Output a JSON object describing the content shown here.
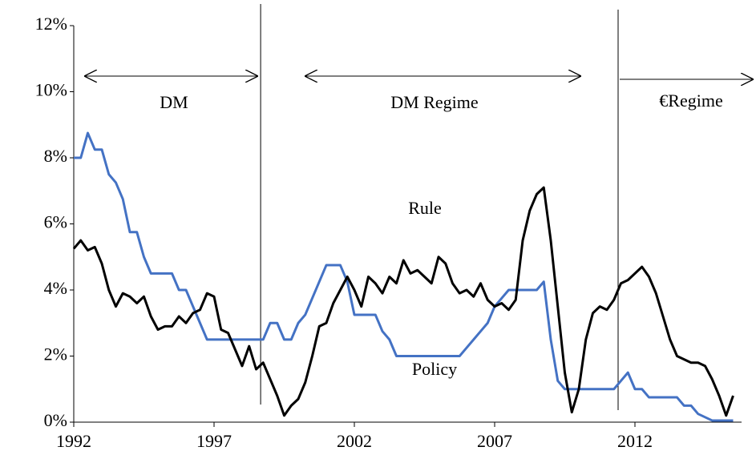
{
  "chart_data": {
    "type": "line",
    "x": [
      1992,
      1992.25,
      1992.5,
      1992.75,
      1993,
      1993.25,
      1993.5,
      1993.75,
      1994,
      1994.25,
      1994.5,
      1994.75,
      1995,
      1995.25,
      1995.5,
      1995.75,
      1996,
      1996.25,
      1996.5,
      1996.75,
      1997,
      1997.25,
      1997.5,
      1997.75,
      1998,
      1998.25,
      1998.5,
      1998.75,
      1999,
      1999.25,
      1999.5,
      1999.75,
      2000,
      2000.25,
      2000.5,
      2000.75,
      2001,
      2001.25,
      2001.5,
      2001.75,
      2002,
      2002.25,
      2002.5,
      2002.75,
      2003,
      2003.25,
      2003.5,
      2003.75,
      2004,
      2004.25,
      2004.5,
      2004.75,
      2005,
      2005.25,
      2005.5,
      2005.75,
      2006,
      2006.25,
      2006.5,
      2006.75,
      2007,
      2007.25,
      2007.5,
      2007.75,
      2008,
      2008.25,
      2008.5,
      2008.75,
      2009,
      2009.25,
      2009.5,
      2009.75,
      2010,
      2010.25,
      2010.5,
      2010.75,
      2011,
      2011.25,
      2011.5,
      2011.75,
      2012,
      2012.25,
      2012.5,
      2012.75,
      2013,
      2013.25,
      2013.5,
      2013.75,
      2014,
      2014.25,
      2014.5,
      2014.75,
      2015,
      2015.25,
      2015.5
    ],
    "series": [
      {
        "name": "Policy",
        "color": "#4472c4",
        "values": [
          8,
          8,
          8.75,
          8.25,
          8.25,
          7.5,
          7.25,
          6.75,
          5.75,
          5.75,
          5,
          4.5,
          4.5,
          4.5,
          4.5,
          4,
          4,
          3.5,
          3,
          2.5,
          2.5,
          2.5,
          2.5,
          2.5,
          2.5,
          2.5,
          2.5,
          2.5,
          3,
          3,
          2.5,
          2.5,
          3,
          3.25,
          3.75,
          4.25,
          4.75,
          4.75,
          4.75,
          4.25,
          3.25,
          3.25,
          3.25,
          3.25,
          2.75,
          2.5,
          2,
          2,
          2,
          2,
          2,
          2,
          2,
          2,
          2,
          2,
          2.25,
          2.5,
          2.75,
          3,
          3.5,
          3.75,
          4,
          4,
          4,
          4,
          4,
          4.25,
          2.5,
          1.25,
          1,
          1,
          1,
          1,
          1,
          1,
          1,
          1,
          1.25,
          1.5,
          1,
          1,
          0.75,
          0.75,
          0.75,
          0.75,
          0.75,
          0.5,
          0.5,
          0.25,
          0.15,
          0.05,
          0.05,
          0.05,
          0.05
        ]
      },
      {
        "name": "Rule",
        "color": "#000000",
        "values": [
          5.25,
          5.5,
          5.2,
          5.3,
          4.8,
          4,
          3.5,
          3.9,
          3.8,
          3.6,
          3.8,
          3.2,
          2.8,
          2.9,
          2.9,
          3.2,
          3,
          3.3,
          3.4,
          3.9,
          3.8,
          2.8,
          2.7,
          2.2,
          1.7,
          2.3,
          1.6,
          1.8,
          1.3,
          0.8,
          0.2,
          0.5,
          0.7,
          1.2,
          2,
          2.9,
          3,
          3.6,
          4,
          4.4,
          4,
          3.5,
          4.4,
          4.2,
          3.9,
          4.4,
          4.2,
          4.9,
          4.5,
          4.6,
          4.4,
          4.2,
          5,
          4.8,
          4.2,
          3.9,
          4,
          3.8,
          4.2,
          3.7,
          3.5,
          3.6,
          3.4,
          3.7,
          5.5,
          6.4,
          6.9,
          7.1,
          5.5,
          3.5,
          1.5,
          0.3,
          1,
          2.5,
          3.3,
          3.5,
          3.4,
          3.7,
          4.2,
          4.3,
          4.5,
          4.7,
          4.4,
          3.9,
          3.2,
          2.5,
          2,
          1.9,
          1.8,
          1.8,
          1.7,
          1.3,
          0.8,
          0.2,
          0.8
        ]
      }
    ],
    "regime_breaks": [
      1998.66,
      2011.4
    ],
    "annotations": [
      "DM",
      "DM Regime",
      "€Regime",
      "Rule",
      "Policy"
    ],
    "xlim": [
      1992,
      2015.8
    ],
    "xticks": [
      1992,
      1997,
      2002,
      2007,
      2012
    ],
    "ylim": [
      0,
      12
    ],
    "yticks": [
      {
        "value": 0,
        "label": "0%"
      },
      {
        "value": 2,
        "label": "2%"
      },
      {
        "value": 4,
        "label": "4%"
      },
      {
        "value": 6,
        "label": "6%"
      },
      {
        "value": 8,
        "label": "8%"
      },
      {
        "value": 10,
        "label": "10%"
      },
      {
        "value": 12,
        "label": "12%"
      }
    ]
  }
}
